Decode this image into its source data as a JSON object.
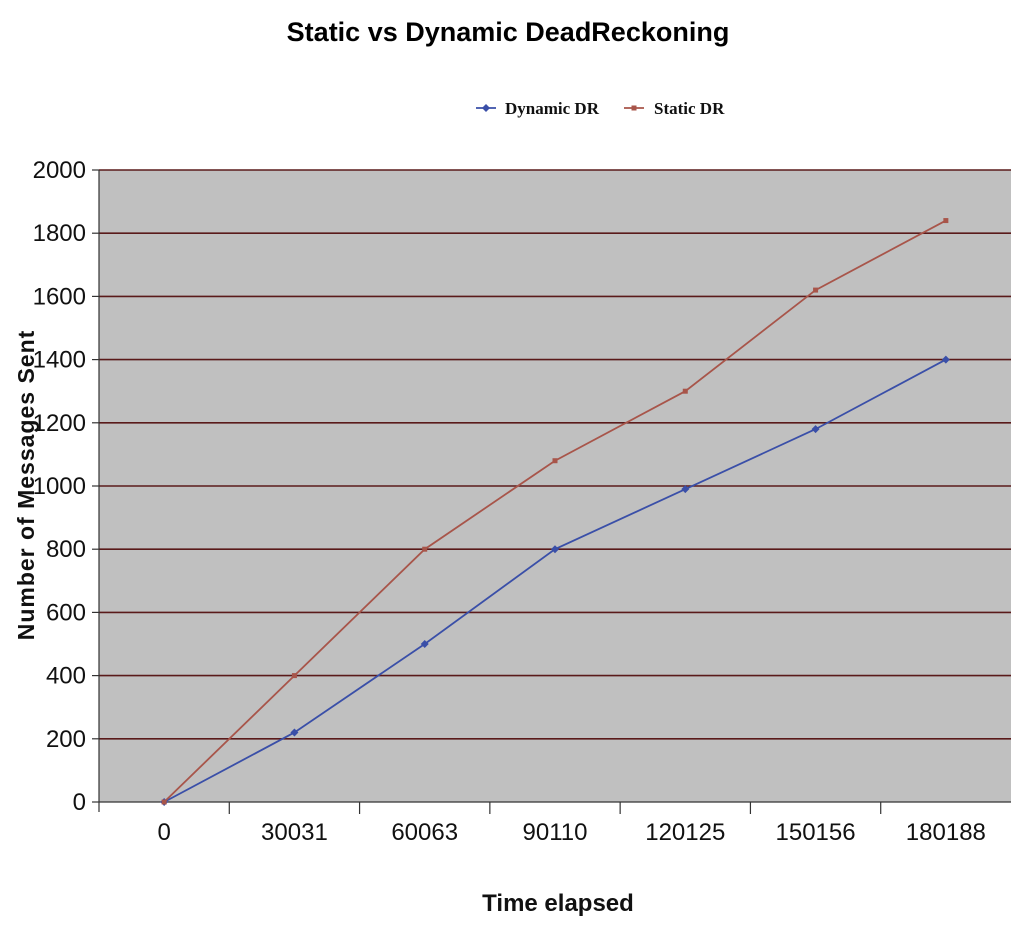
{
  "chart_data": {
    "type": "line",
    "title": "Static vs Dynamic DeadReckoning",
    "xlabel": "Time elapsed",
    "ylabel": "Number of Messages Sent",
    "categories": [
      "0",
      "30031",
      "60063",
      "90110",
      "120125",
      "150156",
      "180188"
    ],
    "ylim": [
      0,
      2000
    ],
    "yticks": [
      0,
      200,
      400,
      600,
      800,
      1000,
      1200,
      1400,
      1600,
      1800,
      2000
    ],
    "grid": true,
    "legend_position": "top",
    "plot_background": "#c0c0c0",
    "gridline_color": "#5a1a1a",
    "series": [
      {
        "name": "Dynamic DR",
        "color": "#3a4fa8",
        "values": [
          0,
          220,
          500,
          800,
          990,
          1180,
          1400
        ]
      },
      {
        "name": "Static DR",
        "color": "#a8554a",
        "values": [
          0,
          400,
          800,
          1080,
          1300,
          1620,
          1840
        ]
      }
    ]
  }
}
